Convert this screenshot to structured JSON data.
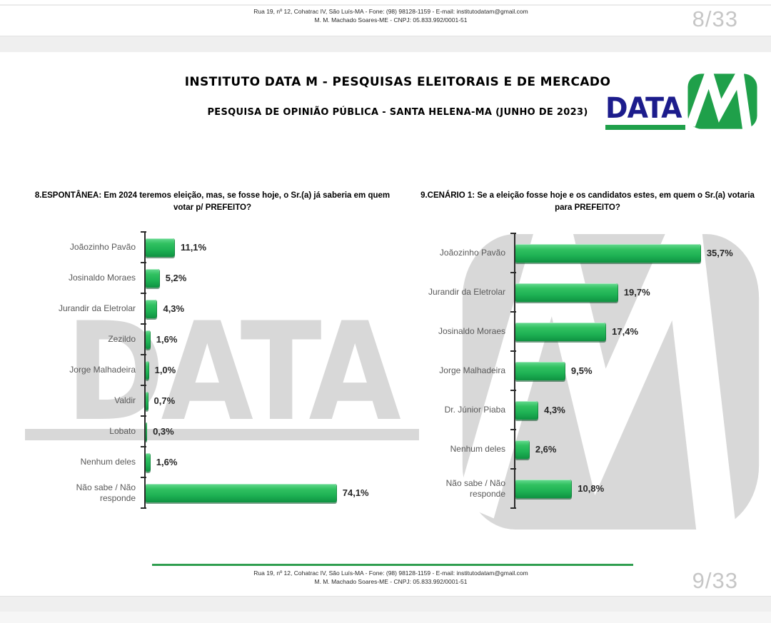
{
  "page": {
    "top_strip": {
      "header_line1": "Rua 19, nº 12, Cohatrac IV, São Luís-MA - Fone: (98) 98128-1159 - E-mail: institutodatam@gmail.com",
      "header_line2": "M. M. Machado Soares-ME - CNPJ: 05.833.992/0001-51",
      "page_number": "8/33"
    },
    "main": {
      "title": "INSTITUTO DATA M - PESQUISAS ELEITORAIS E DE MERCADO",
      "subtitle": "PESQUISA DE OPINIÃO PÚBLICA - SANTA HELENA-MA (JUNHO DE 2023)",
      "logo_text": "DATA",
      "footer_line1": "Rua 19, nº 12, Cohatrac IV, São Luís-MA - Fone: (98) 98128-1159 - E-mail: institutodatam@gmail.com",
      "footer_line2": "M. M. Machado Soares-ME - CNPJ: 05.833.992/0001-51",
      "page_number": "9/33"
    },
    "watermark_text": "DATA"
  },
  "chart_data": [
    {
      "type": "bar",
      "orientation": "horizontal",
      "title": "8.ESPONTÂNEA: Em 2024 teremos eleição, mas, se fosse hoje, o Sr.(a) já saberia em quem votar p/ PREFEITO?",
      "categories": [
        "Joãozinho Pavão",
        "Josinaldo Moraes",
        "Jurandir da Eletrolar",
        "Zezildo",
        "Jorge Malhadeira",
        "Valdir",
        "Lobato",
        "Nenhum deles",
        "Não sabe / Não\nresponde"
      ],
      "values": [
        11.1,
        5.2,
        4.3,
        1.6,
        1.0,
        0.7,
        0.3,
        1.6,
        74.1
      ],
      "value_labels": [
        "11,1%",
        "5,2%",
        "4,3%",
        "1,6%",
        "1,0%",
        "0,7%",
        "0,3%",
        "1,6%",
        "74,1%"
      ],
      "xlabel": "",
      "ylabel": "",
      "xlim": [
        0,
        80
      ],
      "grid": false,
      "legend": false,
      "bar_color": "#22b14c"
    },
    {
      "type": "bar",
      "orientation": "horizontal",
      "title": "9.CENÁRIO 1: Se a eleição fosse hoje e os candidatos estes, em quem o Sr.(a) votaria para PREFEITO?",
      "categories": [
        "Joãozinho Pavão",
        "Jurandir da Eletrolar",
        "Josinaldo Moraes",
        "Jorge Malhadeira",
        "Dr. Júnior Piaba",
        "Nenhum deles",
        "Não sabe / Não\nresponde"
      ],
      "values": [
        35.7,
        19.7,
        17.4,
        9.5,
        4.3,
        2.6,
        10.8
      ],
      "value_labels": [
        "35,7%",
        "19,7%",
        "17,4%",
        "9,5%",
        "4,3%",
        "2,6%",
        "10,8%"
      ],
      "xlabel": "",
      "ylabel": "",
      "xlim": [
        0,
        40
      ],
      "grid": false,
      "legend": false,
      "bar_color": "#22b14c"
    }
  ],
  "colors": {
    "bar_green": "#22b14c",
    "logo_navy": "#1c1c8c",
    "logo_green": "#1fa04a",
    "footer_rule_green": "#2f9e4f",
    "watermark_gray": "#d8d8d8",
    "page_number_gray": "#c6c6c6",
    "category_label_gray": "#595959"
  }
}
